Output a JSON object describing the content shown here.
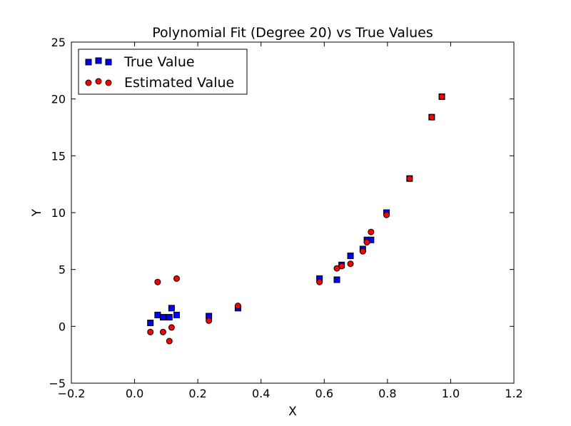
{
  "chart_data": {
    "type": "scatter",
    "title": "Polynomial Fit (Degree 20) vs True Values",
    "xlabel": "X",
    "ylabel": "Y",
    "xlim": [
      -0.2,
      1.2
    ],
    "ylim": [
      -5,
      25
    ],
    "xticks": [
      -0.2,
      0.0,
      0.2,
      0.4,
      0.6,
      0.8,
      1.0,
      1.2
    ],
    "xtick_labels": [
      "−0.2",
      "0.0",
      "0.2",
      "0.4",
      "0.6",
      "0.8",
      "1.0",
      "1.2"
    ],
    "yticks": [
      -5,
      0,
      5,
      10,
      15,
      20,
      25
    ],
    "ytick_labels": [
      "−5",
      "0",
      "5",
      "10",
      "15",
      "20",
      "25"
    ],
    "grid": false,
    "legend_position": "top-left",
    "series": [
      {
        "name": "True Value",
        "marker": "square",
        "color": "#0000ff",
        "points": [
          {
            "x": 0.05,
            "y": 0.3
          },
          {
            "x": 0.073,
            "y": 1.0
          },
          {
            "x": 0.09,
            "y": 0.8
          },
          {
            "x": 0.11,
            "y": 0.8
          },
          {
            "x": 0.117,
            "y": 1.6
          },
          {
            "x": 0.133,
            "y": 1.0
          },
          {
            "x": 0.235,
            "y": 0.9
          },
          {
            "x": 0.327,
            "y": 1.6
          },
          {
            "x": 0.585,
            "y": 4.2
          },
          {
            "x": 0.64,
            "y": 4.1
          },
          {
            "x": 0.655,
            "y": 5.4
          },
          {
            "x": 0.683,
            "y": 6.2
          },
          {
            "x": 0.722,
            "y": 6.8
          },
          {
            "x": 0.735,
            "y": 7.6
          },
          {
            "x": 0.748,
            "y": 7.6
          },
          {
            "x": 0.797,
            "y": 10.0
          },
          {
            "x": 0.87,
            "y": 13.0
          },
          {
            "x": 0.94,
            "y": 18.4
          },
          {
            "x": 0.972,
            "y": 20.2
          }
        ]
      },
      {
        "name": "Estimated Value",
        "marker": "circle",
        "color": "#ff0000",
        "points": [
          {
            "x": 0.05,
            "y": -0.5
          },
          {
            "x": 0.073,
            "y": 3.9
          },
          {
            "x": 0.09,
            "y": -0.5
          },
          {
            "x": 0.11,
            "y": -1.3
          },
          {
            "x": 0.117,
            "y": -0.1
          },
          {
            "x": 0.133,
            "y": 4.2
          },
          {
            "x": 0.235,
            "y": 0.5
          },
          {
            "x": 0.327,
            "y": 1.8
          },
          {
            "x": 0.585,
            "y": 3.9
          },
          {
            "x": 0.64,
            "y": 5.1
          },
          {
            "x": 0.655,
            "y": 5.3
          },
          {
            "x": 0.683,
            "y": 5.5
          },
          {
            "x": 0.722,
            "y": 6.6
          },
          {
            "x": 0.735,
            "y": 7.4
          },
          {
            "x": 0.748,
            "y": 8.3
          },
          {
            "x": 0.797,
            "y": 9.8
          },
          {
            "x": 0.87,
            "y": 13.0
          },
          {
            "x": 0.94,
            "y": 18.4
          },
          {
            "x": 0.972,
            "y": 20.2
          }
        ]
      }
    ]
  }
}
